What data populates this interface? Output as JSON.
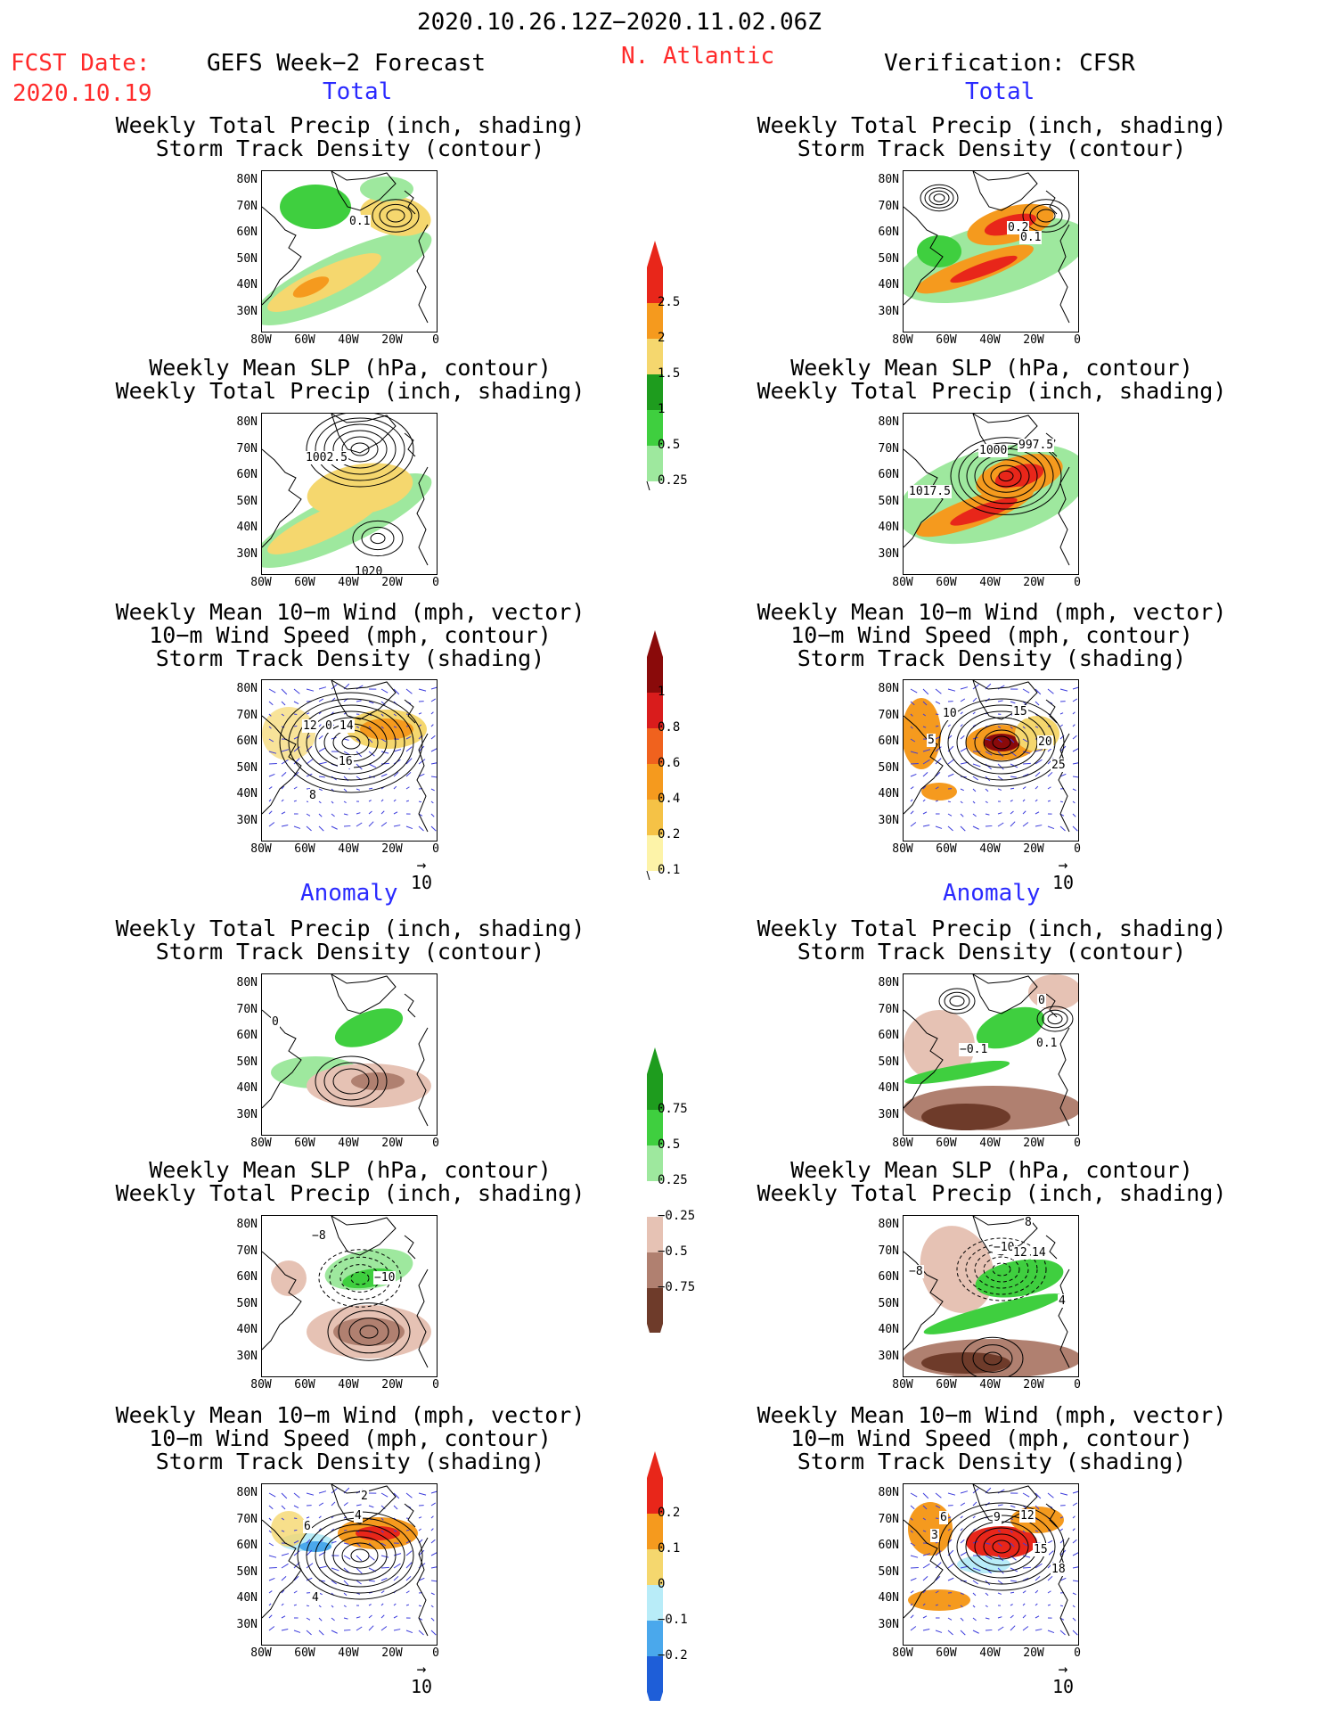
{
  "header": {
    "period": "2020.10.26.12Z−2020.11.02.06Z",
    "fcst_label": "FCST Date:",
    "fcst_date": "2020.10.19",
    "left_title": "GEFS Week−2 Forecast",
    "region": "N. Atlantic",
    "right_title": "Verification: CFSR"
  },
  "sections": {
    "total": "Total",
    "anomaly": "Anomaly"
  },
  "titles": {
    "precip_track": [
      "Weekly Total Precip (inch, shading)",
      "Storm Track Density (contour)"
    ],
    "slp_precip": [
      "Weekly Mean SLP (hPa, contour)",
      "Weekly Total Precip (inch, shading)"
    ],
    "wind_track": [
      "Weekly Mean 10−m Wind (mph, vector)",
      "10−m Wind Speed (mph, contour)",
      "Storm Track Density (shading)"
    ]
  },
  "axes": {
    "lat": [
      "80N",
      "70N",
      "60N",
      "50N",
      "40N",
      "30N"
    ],
    "lon": [
      "80W",
      "60W",
      "40W",
      "20W",
      "0"
    ]
  },
  "vector_ref": "10",
  "colorbars": {
    "total_precip": {
      "labels": [
        "2.5",
        "2",
        "1.5",
        "1",
        "0.5",
        "0.25"
      ],
      "colors": [
        "#e8261a",
        "#f59a1e",
        "#f5d76e",
        "#1e9c1e",
        "#3fcf3f",
        "#9ee89e"
      ]
    },
    "total_track": {
      "labels": [
        "1",
        "0.8",
        "0.6",
        "0.4",
        "0.2",
        "0.1"
      ],
      "colors": [
        "#8a0a0a",
        "#d91c1c",
        "#f0621e",
        "#f59a1e",
        "#f5c246",
        "#fdf3a8"
      ]
    },
    "anom_precip": {
      "labels": [
        "0.75",
        "0.5",
        "0.25",
        "−0.25",
        "−0.5",
        "−0.75"
      ],
      "colors": [
        "#1e9c1e",
        "#3fcf3f",
        "#9ee89e",
        "#ffffff",
        "#e6c2b4",
        "#b08070",
        "#6e3b2a"
      ]
    },
    "anom_track": {
      "labels": [
        "0.2",
        "0.1",
        "0",
        "−0.1",
        "−0.2"
      ],
      "colors": [
        "#e8261a",
        "#f59a1e",
        "#f5d76e",
        "#b8ecf8",
        "#4aa8ec",
        "#1e5ed8"
      ]
    }
  },
  "panels": {
    "p1": [
      "0.1"
    ],
    "p2": [
      "0.2",
      "0.1"
    ],
    "p3": [
      "1002.5",
      "1020"
    ],
    "p4": [
      "1000",
      "997.5",
      "1017.5"
    ],
    "p5": [
      "12",
      "0",
      "14",
      "16",
      "8"
    ],
    "p6": [
      "10",
      "15",
      "5",
      "20",
      "25"
    ],
    "p7": [
      "0"
    ],
    "p8": [
      "0",
      "−0.1",
      "0.1"
    ],
    "p9": [
      "−8",
      "−10"
    ],
    "p10": [
      "8",
      "−10",
      "12",
      "14",
      "−8",
      "4"
    ],
    "p11": [
      "2",
      "4",
      "6",
      "4"
    ],
    "p12": [
      "6",
      "3",
      "9",
      "12",
      "15",
      "18"
    ]
  }
}
